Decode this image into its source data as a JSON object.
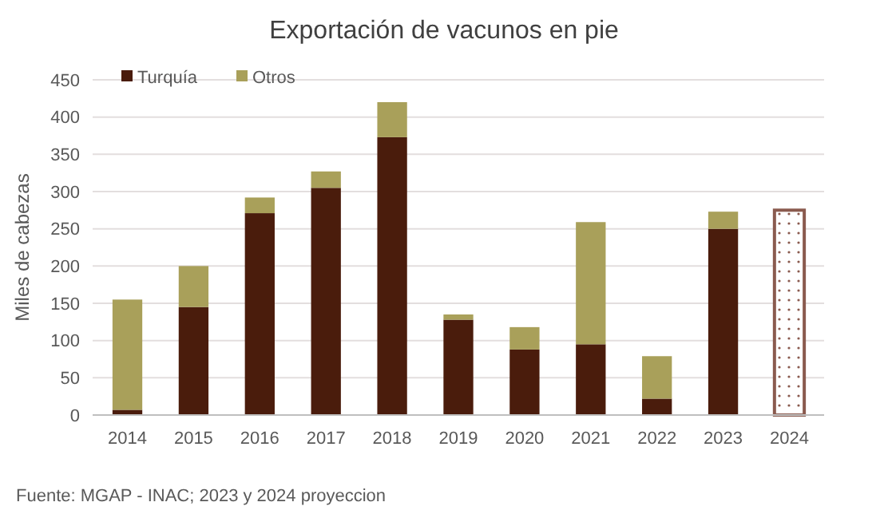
{
  "chart_data": {
    "type": "bar",
    "title": "Exportación de vacunos en pie",
    "ylabel": "Miles de cabezas",
    "stacked": true,
    "categories": [
      "2014",
      "2015",
      "2016",
      "2017",
      "2018",
      "2019",
      "2020",
      "2021",
      "2022",
      "2023",
      "2024"
    ],
    "series": [
      {
        "name": "Turquía",
        "color": "#4a1c0c",
        "values": [
          7,
          145,
          271,
          305,
          373,
          128,
          88,
          95,
          22,
          250,
          null
        ]
      },
      {
        "name": "Otros",
        "color": "#a9a05a",
        "values": [
          148,
          55,
          21,
          22,
          47,
          7,
          30,
          164,
          57,
          23,
          null
        ]
      },
      {
        "color": "#8a5a4e",
        "values": [
          null,
          null,
          null,
          null,
          null,
          null,
          null,
          null,
          null,
          null,
          275
        ]
      }
    ],
    "ylim": [
      0,
      450
    ],
    "yticks": [
      0,
      50,
      100,
      150,
      200,
      250,
      300,
      350,
      400,
      450
    ],
    "grid": "y",
    "legend": "top left",
    "annotations": [
      "Fuente: MGAP - INAC; 2023 y 2024 proyeccion"
    ]
  }
}
